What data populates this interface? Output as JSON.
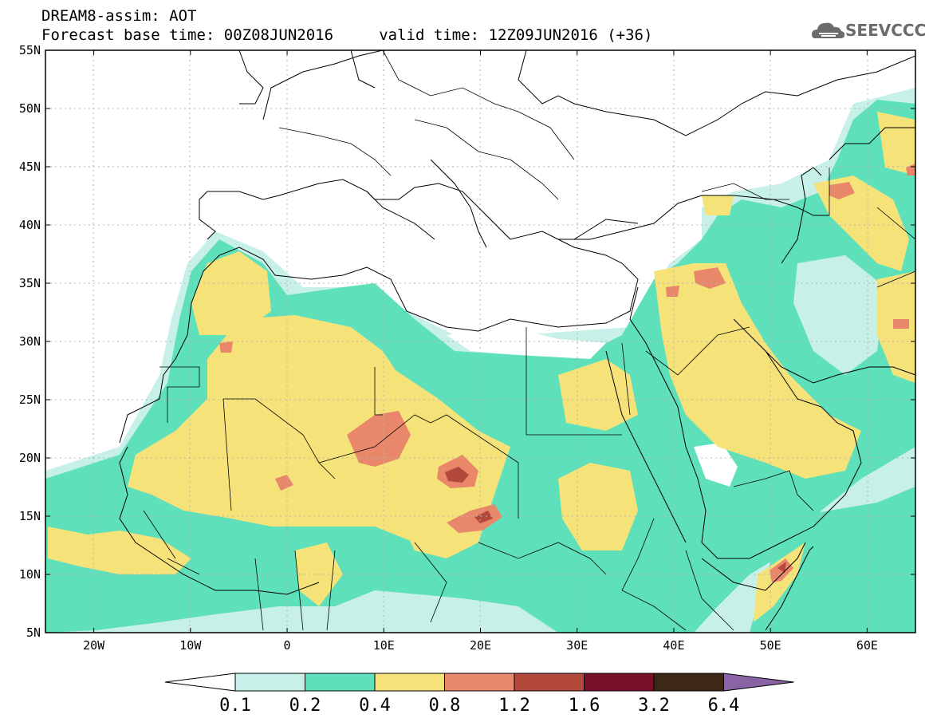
{
  "header": {
    "line1": "DREAM8-assim: AOT",
    "line2": "Forecast base time: 00Z08JUN2016     valid time: 12Z09JUN2016 (+36)"
  },
  "logo": {
    "text": "SEEVCCC",
    "icon": "cloud-icon"
  },
  "map": {
    "lat_labels": [
      "55N",
      "50N",
      "45N",
      "40N",
      "35N",
      "30N",
      "25N",
      "20N",
      "15N",
      "10N",
      "5N"
    ],
    "lon_labels": [
      "20W",
      "10W",
      "0",
      "10E",
      "20E",
      "30E",
      "40E",
      "50E",
      "60E"
    ],
    "lat_range": [
      5,
      55
    ],
    "lon_range": [
      -25,
      65
    ],
    "grid": "dotted"
  },
  "colorbar": {
    "ticks": [
      "0.1",
      "0.2",
      "0.4",
      "0.8",
      "1.2",
      "1.6",
      "3.2",
      "6.4"
    ],
    "colors": [
      "#ffffff",
      "#c6f0e8",
      "#5ee0bb",
      "#f5e37a",
      "#e8876a",
      "#b2493b",
      "#7a0f2a",
      "#3d2716",
      "#8a63a6"
    ]
  },
  "colors": {
    "c01": "#c6f0e8",
    "c02": "#5ee0bb",
    "c04": "#f5e37a",
    "c08": "#e8876a",
    "c12": "#b2493b"
  }
}
